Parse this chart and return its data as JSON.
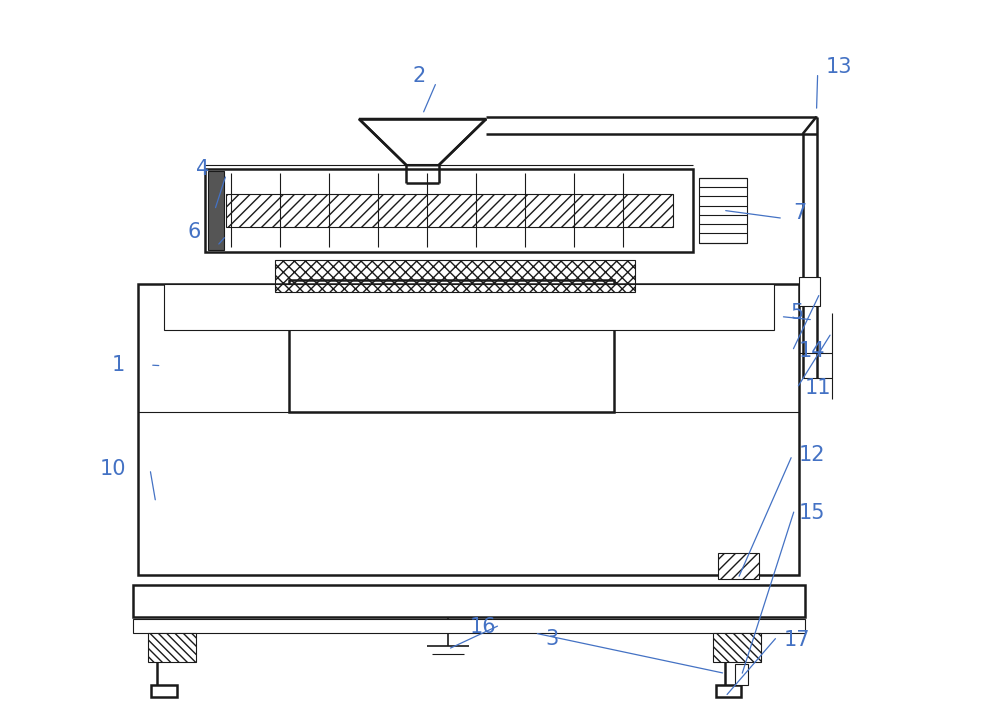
{
  "bg_color": "#ffffff",
  "line_color": "#1a1a1a",
  "label_color": "#4472c4",
  "fig_width": 10.0,
  "fig_height": 7.07,
  "lw_main": 1.8,
  "lw_med": 1.2,
  "lw_thin": 0.8
}
